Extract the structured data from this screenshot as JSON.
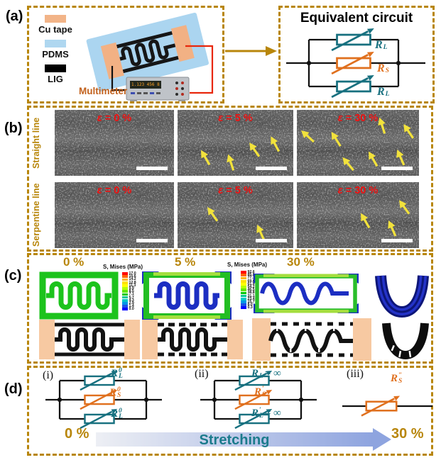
{
  "panel_a": {
    "label": "(a)",
    "legend": [
      {
        "name": "Cu tape",
        "color": "#F2B488"
      },
      {
        "name": "PDMS",
        "color": "#AFD7F0"
      },
      {
        "name": "LIG",
        "color": "#000000"
      }
    ],
    "multimeter_label": "Multimeter",
    "multimeter_display": "1.123 456 8",
    "equivalent_circuit": {
      "title": "Equivalent circuit",
      "resistors": [
        {
          "main": "R",
          "sub": "L",
          "sup": "",
          "suffix": "",
          "color": "teal"
        },
        {
          "main": "R",
          "sub": "S",
          "sup": "",
          "suffix": "",
          "color": "orange"
        },
        {
          "main": "R",
          "sub": "L",
          "sup": "",
          "suffix": "",
          "color": "teal"
        }
      ]
    }
  },
  "panel_b": {
    "label": "(b)",
    "rows": [
      {
        "row_label": "Straight line",
        "cells": [
          {
            "strain_label": "ε = 0 %",
            "arrows": []
          },
          {
            "strain_label": "ε = 5 %",
            "arrows": [
              [
                24,
                72,
                -30
              ],
              [
                46,
                80,
                -18
              ],
              [
                66,
                60,
                -35
              ],
              [
                84,
                52,
                -28
              ]
            ]
          },
          {
            "strain_label": "ε = 30 %",
            "arrows": [
              [
                9,
                40,
                -48
              ],
              [
                32,
                44,
                -32
              ],
              [
                70,
                24,
                -18
              ],
              [
                42,
                82,
                -40
              ],
              [
                62,
                74,
                -30
              ],
              [
                85,
                72,
                -24
              ],
              [
                91,
                32,
                -34
              ]
            ]
          }
        ]
      },
      {
        "row_label": "Serpentine line",
        "cells": [
          {
            "strain_label": "ε = 0 %",
            "arrows": []
          },
          {
            "strain_label": "ε = 5 %",
            "arrows": [
              [
                30,
                48,
                -35
              ],
              [
                72,
                76,
                -24
              ]
            ]
          },
          {
            "strain_label": "ε = 30 %",
            "arrows": [
              [
                56,
                58,
                -30
              ],
              [
                78,
                70,
                -24
              ],
              [
                88,
                38,
                -36
              ]
            ]
          }
        ]
      }
    ]
  },
  "panel_c": {
    "label": "(c)",
    "col_labels": [
      "0 %",
      "5 %",
      "30 %"
    ],
    "colorbars": [
      {
        "title": "S, Mises (MPa)",
        "ticks": [
          "17.0",
          "15.6",
          "14.2",
          "12.8",
          "11.3",
          "9.9",
          "8.5",
          "7.1",
          "5.7",
          "4.3",
          "2.9",
          "1.4",
          "0.0"
        ]
      },
      {
        "title": "S, Mises (MPa)",
        "ticks": [
          "92.6",
          "85.0",
          "77.3",
          "69.6",
          "61.9",
          "54.2",
          "46.5",
          "38.8",
          "31.1",
          "23.4",
          "15.7",
          "8.0",
          "0.3"
        ]
      }
    ],
    "spectrum": [
      "#FF0000",
      "#FF6400",
      "#FFB400",
      "#FFE100",
      "#FFFF00",
      "#B4FF00",
      "#64E600",
      "#00C800",
      "#00C896",
      "#00C8C8",
      "#0096E6",
      "#1E50E6",
      "#0000FF"
    ]
  },
  "panel_d": {
    "label": "(d)",
    "circuits": [
      {
        "tag": "(i)",
        "branches": [
          {
            "main": "R",
            "sub": "L",
            "sup": "0",
            "suffix": "",
            "color": "teal"
          },
          {
            "main": "R",
            "sub": "S",
            "sup": "0",
            "suffix": "",
            "color": "orange"
          },
          {
            "main": "R",
            "sub": "L",
            "sup": "0",
            "suffix": "",
            "color": "teal"
          }
        ]
      },
      {
        "tag": "(ii)",
        "branches": [
          {
            "main": "R",
            "sub": "L",
            "sup": "′",
            "suffix": " = ∞",
            "color": "teal"
          },
          {
            "main": "R",
            "sub": "S",
            "sup": "′",
            "suffix": "",
            "color": "orange"
          },
          {
            "main": "R",
            "sub": "L",
            "sup": "′",
            "suffix": " = ∞",
            "color": "teal"
          }
        ]
      },
      {
        "tag": "(iii)",
        "branches": [
          {
            "main": "R",
            "sub": "S",
            "sup": "″",
            "suffix": "",
            "color": "orange"
          }
        ]
      }
    ],
    "start_label": "0 %",
    "arrow_label": "Stretching",
    "end_label": "30 %"
  }
}
